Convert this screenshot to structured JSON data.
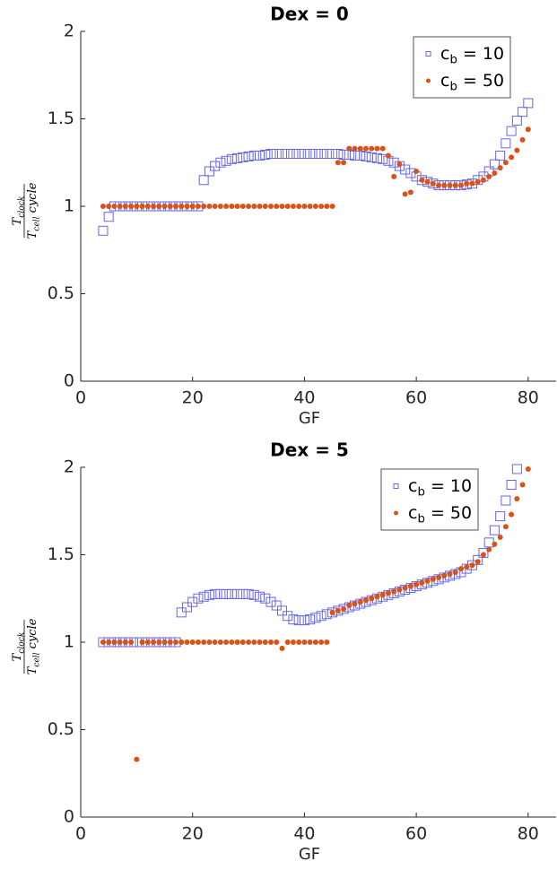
{
  "chart_data": [
    {
      "type": "scatter",
      "title": "Dex = 0",
      "x_label": "GF",
      "y_label": {
        "numerator": "Tclock",
        "denominator": "Tcell cycle"
      },
      "xlim": [
        0,
        85
      ],
      "ylim": [
        0,
        2
      ],
      "xticks": [
        0,
        20,
        40,
        60,
        80
      ],
      "yticks": [
        0,
        0.5,
        1,
        1.5,
        2
      ],
      "legend_position": "northeast",
      "series": [
        {
          "name": "cb = 10",
          "color": "#6666ee",
          "marker": "square",
          "x": [
            4,
            5,
            6,
            7,
            8,
            9,
            10,
            11,
            12,
            13,
            14,
            15,
            16,
            17,
            18,
            19,
            20,
            21,
            22,
            23,
            24,
            25,
            26,
            27,
            28,
            29,
            30,
            31,
            32,
            33,
            34,
            35,
            36,
            37,
            38,
            39,
            40,
            41,
            42,
            43,
            44,
            45,
            46,
            47,
            48,
            49,
            50,
            51,
            52,
            53,
            54,
            55,
            56,
            57,
            58,
            59,
            60,
            61,
            62,
            63,
            64,
            65,
            66,
            67,
            68,
            69,
            70,
            71,
            72,
            73,
            74,
            75,
            76,
            77,
            78,
            79,
            80
          ],
          "values": [
            0.86,
            0.94,
            1,
            1,
            1,
            1,
            1,
            1,
            1,
            1,
            1,
            1,
            1,
            1,
            1,
            1,
            1,
            1,
            1.15,
            1.2,
            1.23,
            1.25,
            1.26,
            1.27,
            1.275,
            1.28,
            1.285,
            1.29,
            1.29,
            1.295,
            1.3,
            1.3,
            1.3,
            1.3,
            1.3,
            1.3,
            1.3,
            1.3,
            1.3,
            1.3,
            1.3,
            1.3,
            1.3,
            1.295,
            1.295,
            1.29,
            1.29,
            1.285,
            1.28,
            1.275,
            1.27,
            1.26,
            1.25,
            1.23,
            1.21,
            1.19,
            1.17,
            1.15,
            1.14,
            1.13,
            1.12,
            1.12,
            1.12,
            1.12,
            1.12,
            1.125,
            1.13,
            1.15,
            1.17,
            1.2,
            1.24,
            1.29,
            1.36,
            1.43,
            1.49,
            1.54,
            1.59
          ]
        },
        {
          "name": "cb = 50",
          "color": "#d95319",
          "marker": "dot",
          "x": [
            4,
            5,
            6,
            7,
            8,
            9,
            10,
            11,
            12,
            13,
            14,
            15,
            16,
            17,
            18,
            19,
            20,
            21,
            22,
            23,
            24,
            25,
            26,
            27,
            28,
            29,
            30,
            31,
            32,
            33,
            34,
            35,
            36,
            37,
            38,
            39,
            40,
            41,
            42,
            43,
            44,
            45,
            46,
            47,
            48,
            49,
            50,
            51,
            52,
            53,
            54,
            55,
            56,
            57,
            58,
            59,
            60,
            61,
            62,
            63,
            64,
            65,
            66,
            67,
            68,
            69,
            70,
            71,
            72,
            73,
            74,
            75,
            76,
            77,
            78,
            79,
            80
          ],
          "values": [
            1,
            1,
            1,
            1,
            1,
            1,
            1,
            1,
            1,
            1,
            1,
            1,
            1,
            1,
            1,
            1,
            1,
            1,
            1,
            1,
            1,
            1,
            1,
            1,
            1,
            1,
            1,
            1,
            1,
            1,
            1,
            1,
            1,
            1,
            1,
            1,
            1,
            1,
            1,
            1,
            1,
            1,
            1.25,
            1.25,
            1.33,
            1.33,
            1.33,
            1.33,
            1.33,
            1.33,
            1.33,
            1.29,
            1.17,
            1.24,
            1.07,
            1.08,
            1.2,
            1.15,
            1.14,
            1.13,
            1.12,
            1.12,
            1.12,
            1.12,
            1.12,
            1.13,
            1.13,
            1.14,
            1.15,
            1.17,
            1.19,
            1.22,
            1.25,
            1.28,
            1.32,
            1.38,
            1.44
          ]
        }
      ]
    },
    {
      "type": "scatter",
      "title": "Dex = 5",
      "x_label": "GF",
      "y_label": {
        "numerator": "Tclock",
        "denominator": "Tcell cycle"
      },
      "xlim": [
        0,
        85
      ],
      "ylim": [
        0,
        2
      ],
      "xticks": [
        0,
        20,
        40,
        60,
        80
      ],
      "yticks": [
        0,
        0.5,
        1,
        1.5,
        2
      ],
      "legend_position": "northeast",
      "series": [
        {
          "name": "cb = 10",
          "color": "#6666ee",
          "marker": "square",
          "x": [
            4,
            5,
            6,
            7,
            8,
            9,
            10,
            11,
            12,
            13,
            14,
            15,
            16,
            17,
            18,
            19,
            20,
            21,
            22,
            23,
            24,
            25,
            26,
            27,
            28,
            29,
            30,
            31,
            32,
            33,
            34,
            35,
            36,
            37,
            38,
            39,
            40,
            41,
            42,
            43,
            44,
            45,
            46,
            47,
            48,
            49,
            50,
            51,
            52,
            53,
            54,
            55,
            56,
            57,
            58,
            59,
            60,
            61,
            62,
            63,
            64,
            65,
            66,
            67,
            68,
            69,
            70,
            71,
            72,
            73,
            74,
            75,
            76,
            77,
            78
          ],
          "values": [
            1,
            1,
            1,
            1,
            1,
            1,
            1,
            1,
            1,
            1,
            1,
            1,
            1,
            1,
            1.17,
            1.2,
            1.23,
            1.25,
            1.26,
            1.27,
            1.275,
            1.275,
            1.275,
            1.275,
            1.275,
            1.275,
            1.275,
            1.27,
            1.26,
            1.25,
            1.23,
            1.21,
            1.18,
            1.15,
            1.13,
            1.125,
            1.125,
            1.13,
            1.14,
            1.15,
            1.16,
            1.17,
            1.18,
            1.19,
            1.2,
            1.21,
            1.22,
            1.23,
            1.24,
            1.25,
            1.26,
            1.27,
            1.28,
            1.29,
            1.3,
            1.31,
            1.32,
            1.33,
            1.34,
            1.35,
            1.36,
            1.37,
            1.38,
            1.39,
            1.4,
            1.42,
            1.44,
            1.47,
            1.51,
            1.57,
            1.64,
            1.72,
            1.81,
            1.9,
            1.99
          ]
        },
        {
          "name": "cb = 50",
          "color": "#d95319",
          "marker": "dot",
          "x": [
            4,
            5,
            6,
            7,
            8,
            9,
            10,
            11,
            12,
            13,
            14,
            15,
            16,
            17,
            18,
            19,
            20,
            21,
            22,
            23,
            24,
            25,
            26,
            27,
            28,
            29,
            30,
            31,
            32,
            33,
            34,
            35,
            36,
            37,
            38,
            39,
            40,
            41,
            42,
            43,
            44,
            45,
            46,
            47,
            48,
            49,
            50,
            51,
            52,
            53,
            54,
            55,
            56,
            57,
            58,
            59,
            60,
            61,
            62,
            63,
            64,
            65,
            66,
            67,
            68,
            69,
            70,
            71,
            72,
            73,
            74,
            75,
            76,
            77,
            78,
            79,
            80
          ],
          "values": [
            1,
            1,
            1,
            1,
            1,
            1,
            0.33,
            1,
            1,
            1,
            1,
            1,
            1,
            1,
            1,
            1,
            1,
            1,
            1,
            1,
            1,
            1,
            1,
            1,
            1,
            1,
            1,
            1,
            1,
            1,
            1,
            1,
            0.965,
            1,
            1,
            1,
            1,
            1,
            1,
            1,
            1,
            1.17,
            1.18,
            1.19,
            1.21,
            1.22,
            1.23,
            1.24,
            1.25,
            1.26,
            1.27,
            1.28,
            1.29,
            1.3,
            1.31,
            1.32,
            1.33,
            1.34,
            1.35,
            1.36,
            1.37,
            1.38,
            1.39,
            1.4,
            1.42,
            1.43,
            1.44,
            1.46,
            1.5,
            1.53,
            1.56,
            1.6,
            1.66,
            1.73,
            1.82,
            1.9,
            1.99
          ]
        }
      ]
    }
  ]
}
